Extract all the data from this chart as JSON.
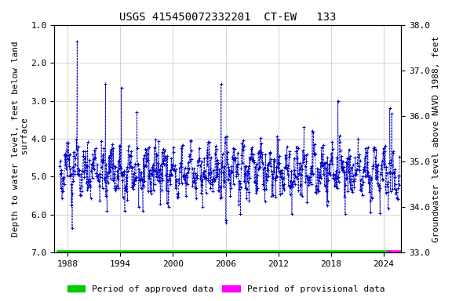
{
  "title": "USGS 415450072332201  CT-EW   133",
  "ylabel_left": "Depth to water level, feet below land\n surface",
  "ylabel_right": "Groundwater level above NAVD 1988, feet",
  "ylim_left": [
    7.0,
    1.0
  ],
  "ylim_right": [
    33.0,
    38.0
  ],
  "xlim": [
    1986.5,
    2026.0
  ],
  "xticks": [
    1988,
    1994,
    2000,
    2006,
    2012,
    2018,
    2024
  ],
  "yticks_left": [
    1.0,
    2.0,
    3.0,
    4.0,
    5.0,
    6.0,
    7.0
  ],
  "yticks_right": [
    38.0,
    37.0,
    36.0,
    35.0,
    34.0,
    33.0
  ],
  "ytick_labels_right": [
    "38.0",
    "37.0",
    "36.0",
    "35.0",
    "34.0",
    "33.0"
  ],
  "data_color": "#0000cc",
  "approved_color": "#00cc00",
  "provisional_color": "#ff00ff",
  "background_color": "#ffffff",
  "title_fontsize": 10,
  "axis_label_fontsize": 8,
  "tick_fontsize": 8,
  "legend_fontsize": 8,
  "approved_x_start": 1987.0,
  "approved_x_end": 2024.6,
  "provisional_x_start": 2024.6,
  "provisional_x_end": 2025.8,
  "seed": 42,
  "n_points": 900,
  "mean_depth": 4.85
}
